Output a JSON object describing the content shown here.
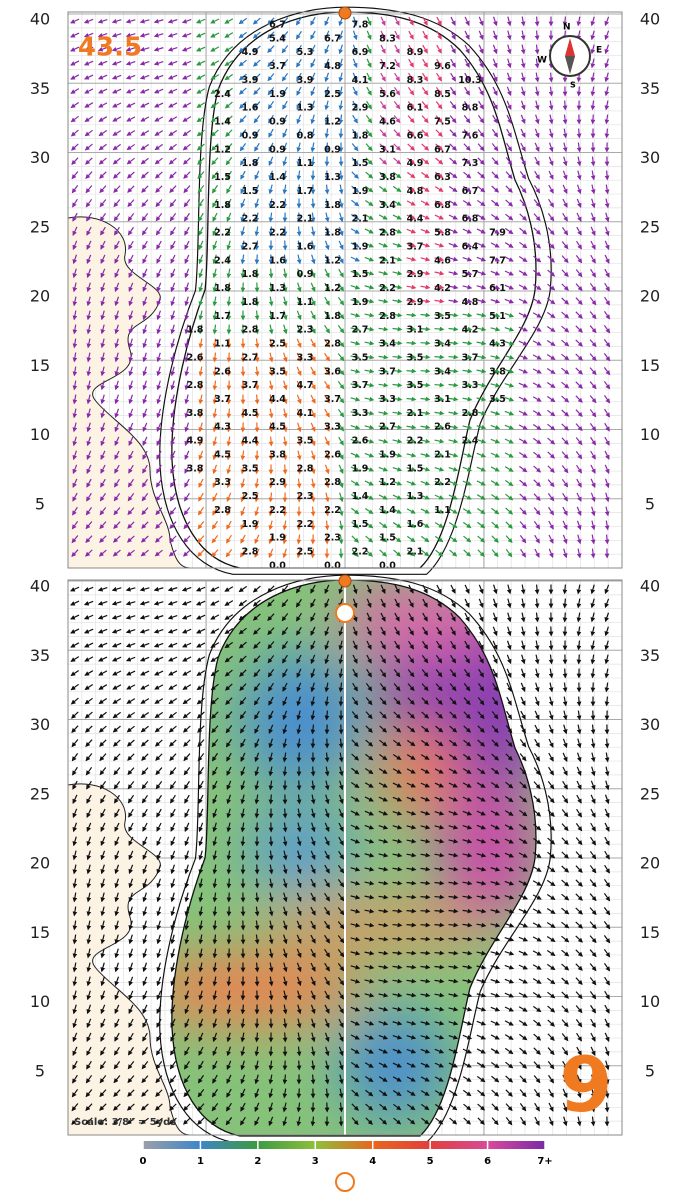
{
  "top_panel": {
    "green_size": "43.5",
    "slope_rows": [
      [
        null,
        null,
        null,
        "6.7",
        null,
        null,
        "7.8",
        null,
        null,
        null,
        null,
        null
      ],
      [
        null,
        null,
        null,
        "5.4",
        null,
        "6.7",
        null,
        "8.3",
        null,
        null,
        null,
        null
      ],
      [
        null,
        null,
        "4.9",
        null,
        "5.3",
        null,
        "6.9",
        null,
        "8.9",
        null,
        null,
        null
      ],
      [
        null,
        null,
        null,
        "3.7",
        null,
        "4.8",
        null,
        "7.2",
        null,
        "9.6",
        null,
        null
      ],
      [
        null,
        null,
        "3.9",
        null,
        "3.9",
        null,
        "4.1",
        null,
        "8.3",
        null,
        "10.3",
        null
      ],
      [
        null,
        "2.4",
        null,
        "1.9",
        null,
        "2.5",
        null,
        "5.6",
        null,
        "8.5",
        null,
        null
      ],
      [
        null,
        null,
        "1.6",
        null,
        "1.3",
        null,
        "2.9",
        null,
        "6.1",
        null,
        "8.8",
        null
      ],
      [
        null,
        "1.4",
        null,
        "0.9",
        null,
        "1.2",
        null,
        "4.6",
        null,
        "7.5",
        null,
        null
      ],
      [
        null,
        null,
        "0.9",
        null,
        "0.8",
        null,
        "1.8",
        null,
        "6.6",
        null,
        "7.6",
        null
      ],
      [
        null,
        "1.2",
        null,
        "0.9",
        null,
        "0.9",
        null,
        "3.1",
        null,
        "6.7",
        null,
        null
      ],
      [
        null,
        null,
        "1.8",
        null,
        "1.1",
        null,
        "1.5",
        null,
        "4.9",
        null,
        "7.3",
        null
      ],
      [
        null,
        "1.5",
        null,
        "1.4",
        null,
        "1.3",
        null,
        "3.8",
        null,
        "6.3",
        null,
        null
      ],
      [
        null,
        null,
        "1.5",
        null,
        "1.7",
        null,
        "1.9",
        null,
        "4.8",
        null,
        "6.7",
        null
      ],
      [
        null,
        "1.8",
        null,
        "2.2",
        null,
        "1.8",
        null,
        "3.4",
        null,
        "6.8",
        null,
        null
      ],
      [
        null,
        null,
        "2.2",
        null,
        "2.1",
        null,
        "2.1",
        null,
        "4.4",
        null,
        "6.8",
        null
      ],
      [
        null,
        "2.2",
        null,
        "2.2",
        null,
        "1.8",
        null,
        "2.8",
        null,
        "5.8",
        null,
        "7.9"
      ],
      [
        null,
        null,
        "2.7",
        null,
        "1.6",
        null,
        "1.9",
        null,
        "3.7",
        null,
        "6.4",
        null
      ],
      [
        null,
        "2.4",
        null,
        "1.6",
        null,
        "1.2",
        null,
        "2.1",
        null,
        "4.6",
        null,
        "7.7"
      ],
      [
        null,
        null,
        "1.8",
        null,
        "0.9",
        null,
        "1.5",
        null,
        "2.9",
        null,
        "5.7",
        null
      ],
      [
        null,
        "1.8",
        null,
        "1.3",
        null,
        "1.2",
        null,
        "2.2",
        null,
        "4.2",
        null,
        "6.1"
      ],
      [
        null,
        null,
        "1.8",
        null,
        "1.1",
        null,
        "1.9",
        null,
        "2.9",
        null,
        "4.8",
        null
      ],
      [
        null,
        "1.7",
        null,
        "1.7",
        null,
        "1.8",
        null,
        "2.8",
        null,
        "3.5",
        null,
        "5.1"
      ],
      [
        "1.8",
        null,
        "2.8",
        null,
        "2.3",
        null,
        "2.7",
        null,
        "3.1",
        null,
        "4.2",
        null
      ],
      [
        null,
        "1.1",
        null,
        "2.5",
        null,
        "2.8",
        null,
        "3.4",
        null,
        "3.4",
        null,
        "4.3"
      ],
      [
        "2.6",
        null,
        "2.7",
        null,
        "3.3",
        null,
        "3.5",
        null,
        "3.5",
        null,
        "3.7",
        null
      ],
      [
        null,
        "2.6",
        null,
        "3.5",
        null,
        "3.6",
        null,
        "3.7",
        null,
        "3.4",
        null,
        "3.8"
      ],
      [
        "2.8",
        null,
        "3.7",
        null,
        "4.7",
        null,
        "3.7",
        null,
        "3.5",
        null,
        "3.3",
        null
      ],
      [
        null,
        "3.7",
        null,
        "4.4",
        null,
        "3.7",
        null,
        "3.3",
        null,
        "3.1",
        null,
        "3.5"
      ],
      [
        "3.8",
        null,
        "4.5",
        null,
        "4.1",
        null,
        "3.3",
        null,
        "2.1",
        null,
        "2.8",
        null
      ],
      [
        null,
        "4.3",
        null,
        "4.5",
        null,
        "3.3",
        null,
        "2.7",
        null,
        "2.6",
        null,
        null
      ],
      [
        "4.9",
        null,
        "4.4",
        null,
        "3.5",
        null,
        "2.6",
        null,
        "2.2",
        null,
        "2.4",
        null
      ],
      [
        null,
        "4.5",
        null,
        "3.8",
        null,
        "2.6",
        null,
        "1.9",
        null,
        "2.1",
        null,
        null
      ],
      [
        "3.8",
        null,
        "3.5",
        null,
        "2.8",
        null,
        "1.9",
        null,
        "1.5",
        null,
        null,
        null
      ],
      [
        null,
        "3.3",
        null,
        "2.9",
        null,
        "2.8",
        null,
        "1.2",
        null,
        "2.2",
        null,
        null
      ],
      [
        null,
        null,
        "2.5",
        null,
        "2.3",
        null,
        "1.4",
        null,
        "1.3",
        null,
        null,
        null
      ],
      [
        null,
        "2.8",
        null,
        "2.2",
        null,
        "2.2",
        null,
        "1.4",
        null,
        "1.1",
        null,
        null
      ],
      [
        null,
        null,
        "1.9",
        null,
        "2.2",
        null,
        "1.5",
        null,
        "1.6",
        null,
        null,
        null
      ],
      [
        null,
        null,
        null,
        "1.9",
        null,
        "2.3",
        null,
        "1.5",
        null,
        null,
        null,
        null
      ],
      [
        null,
        null,
        "2.8",
        null,
        "2.5",
        null,
        "2.2",
        null,
        "2.1",
        null,
        null,
        null
      ],
      [
        null,
        null,
        null,
        "0.0",
        null,
        "0.0",
        null,
        "0.0",
        null,
        null,
        null,
        null
      ]
    ]
  },
  "bottom_panel": {
    "scale_note": "Scale: 3/8\" = 5yds",
    "hole_number": "9"
  },
  "axis": {
    "ticks": [
      40,
      35,
      30,
      25,
      20,
      15,
      10,
      5
    ]
  },
  "compass": {
    "n": "N",
    "e": "E",
    "s": "S",
    "w": "W"
  },
  "legend": {
    "labels": [
      "0",
      "1",
      "2",
      "3",
      "4",
      "5",
      "6",
      "7+"
    ]
  }
}
